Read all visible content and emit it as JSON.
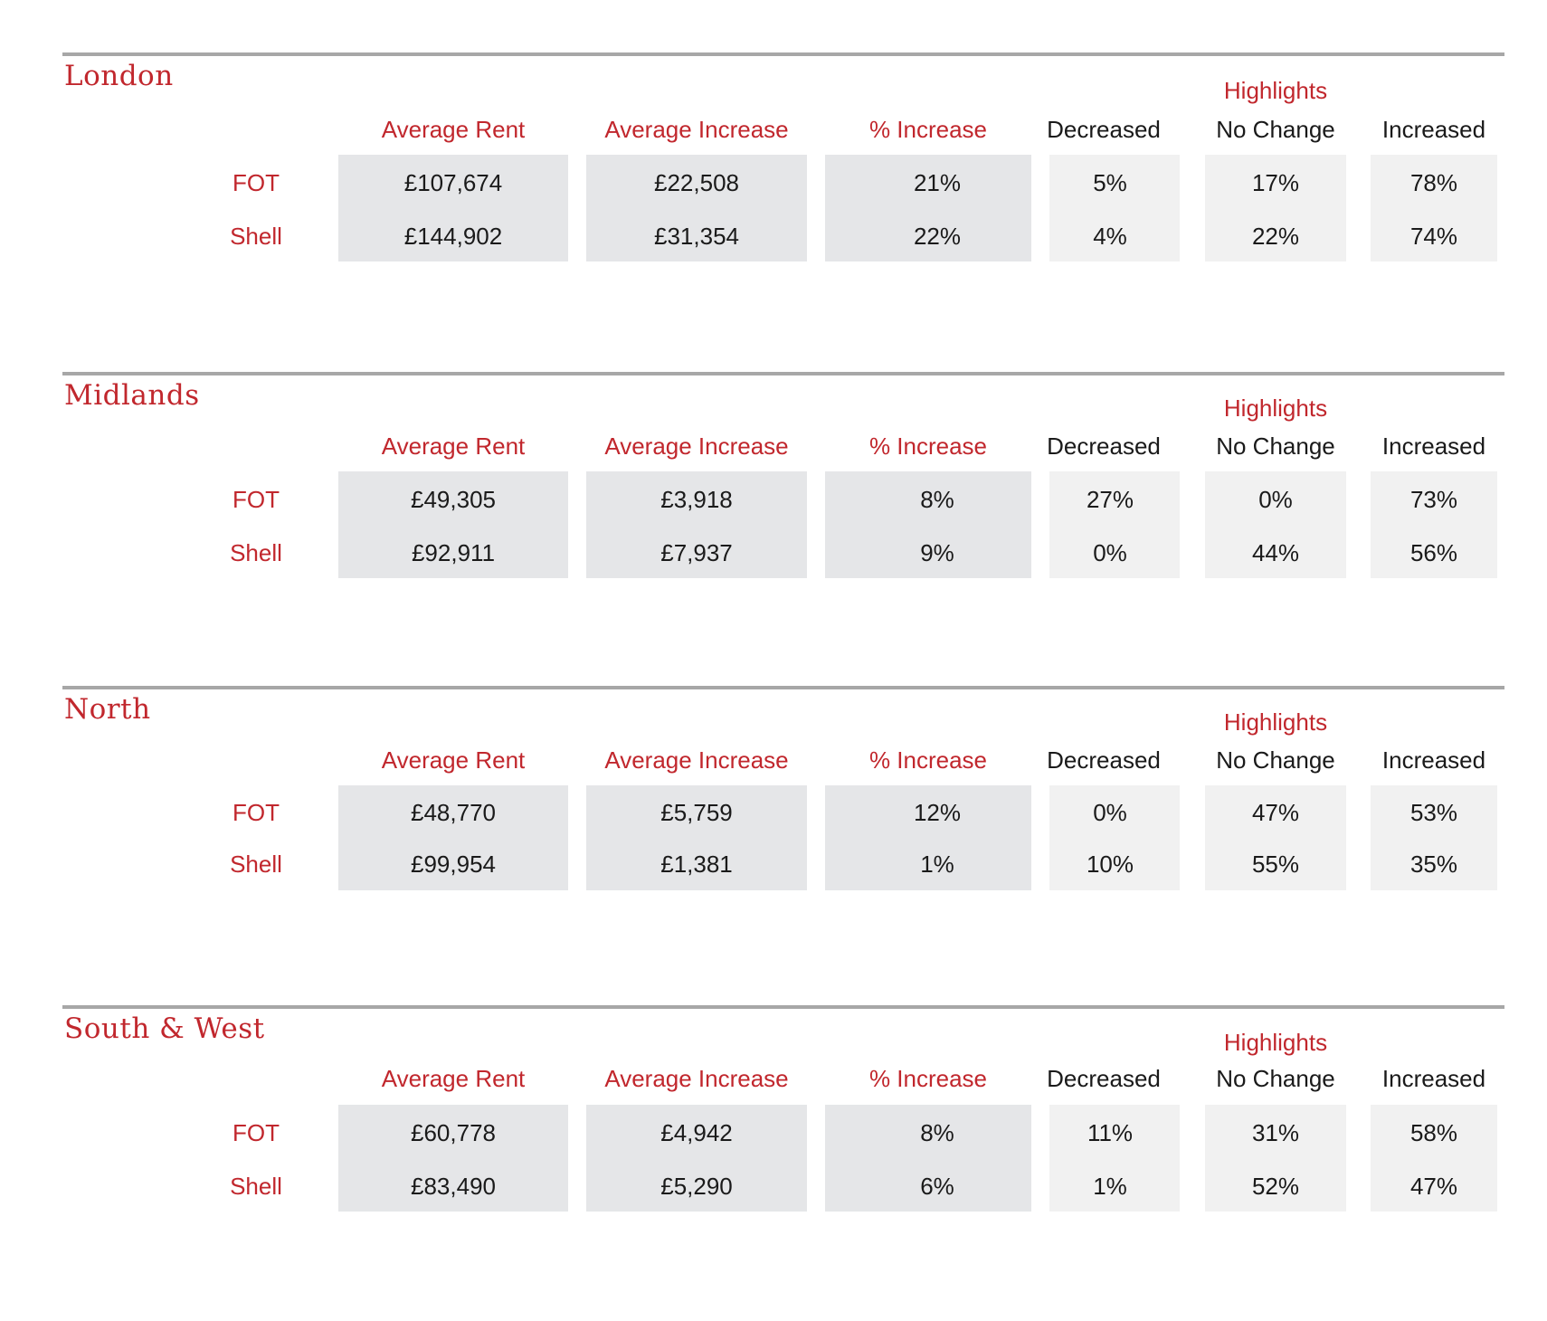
{
  "headers": {
    "highlights": "Highlights",
    "average_rent": "Average Rent",
    "average_increase": "Average Increase",
    "pct_increase": "% Increase",
    "decreased": "Decreased",
    "no_change": "No Change",
    "increased": "Increased"
  },
  "sections": [
    {
      "region": "London",
      "rows": [
        {
          "label": "FOT",
          "average_rent": "£107,674",
          "average_increase": "£22,508",
          "pct_increase": "21%",
          "decreased": "5%",
          "no_change": "17%",
          "increased": "78%"
        },
        {
          "label": "Shell",
          "average_rent": "£144,902",
          "average_increase": "£31,354",
          "pct_increase": "22%",
          "decreased": "4%",
          "no_change": "22%",
          "increased": "74%"
        }
      ]
    },
    {
      "region": "Midlands",
      "rows": [
        {
          "label": "FOT",
          "average_rent": "£49,305",
          "average_increase": "£3,918",
          "pct_increase": "8%",
          "decreased": "27%",
          "no_change": "0%",
          "increased": "73%"
        },
        {
          "label": "Shell",
          "average_rent": "£92,911",
          "average_increase": "£7,937",
          "pct_increase": "9%",
          "decreased": "0%",
          "no_change": "44%",
          "increased": "56%"
        }
      ]
    },
    {
      "region": "North",
      "rows": [
        {
          "label": "FOT",
          "average_rent": "£48,770",
          "average_increase": "£5,759",
          "pct_increase": "12%",
          "decreased": "0%",
          "no_change": "47%",
          "increased": "53%"
        },
        {
          "label": "Shell",
          "average_rent": "£99,954",
          "average_increase": "£1,381",
          "pct_increase": "1%",
          "decreased": "10%",
          "no_change": "55%",
          "increased": "35%"
        }
      ]
    },
    {
      "region": "South & West",
      "rows": [
        {
          "label": "FOT",
          "average_rent": "£60,778",
          "average_increase": "£4,942",
          "pct_increase": "8%",
          "decreased": "11%",
          "no_change": "31%",
          "increased": "58%"
        },
        {
          "label": "Shell",
          "average_rent": "£83,490",
          "average_increase": "£5,290",
          "pct_increase": "6%",
          "decreased": "1%",
          "no_change": "52%",
          "increased": "47%"
        }
      ]
    }
  ],
  "colors": {
    "accent_red": "#c1272d",
    "rule_grey": "#a7a7a7",
    "cell_dark": "#e5e6e8",
    "cell_light": "#f1f1f1",
    "text_dark": "#1a1a1a"
  }
}
